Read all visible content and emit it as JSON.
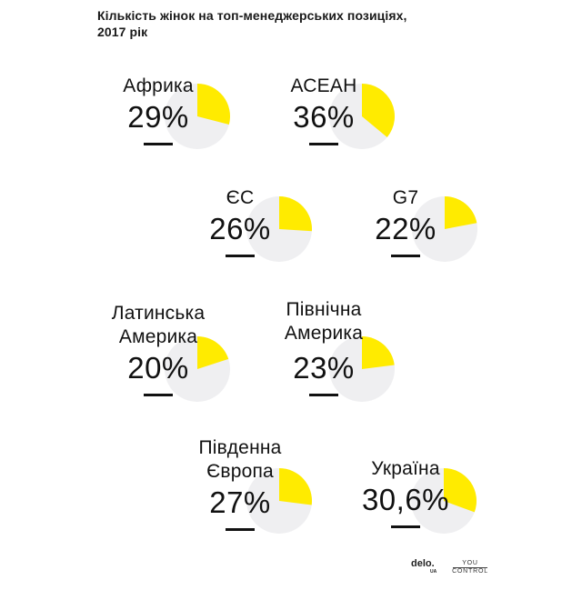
{
  "title": {
    "line1": "Кількість жінок на топ-менеджерських позиціях,",
    "line2": "2017 рік"
  },
  "colors": {
    "slice": "#FFEB00",
    "rest": "#EFEFF1",
    "text": "#111111"
  },
  "blocks": [
    {
      "label1": "Африка",
      "label2": "",
      "value": "29%"
    },
    {
      "label1": "АСЕАН",
      "label2": "",
      "value": "36%"
    },
    {
      "label1": "ЄС",
      "label2": "",
      "value": "26%"
    },
    {
      "label1": "G7",
      "label2": "",
      "value": "22%"
    },
    {
      "label1": "Латинська",
      "label2": "Америка",
      "value": "20%"
    },
    {
      "label1": "Північна",
      "label2": "Америка",
      "value": "23%"
    },
    {
      "label1": "Південна",
      "label2": "Європа",
      "value": "27%"
    },
    {
      "label1": "Україна",
      "label2": "",
      "value": "30,6%"
    }
  ],
  "logos": {
    "delo": "delo.",
    "delo_sub": "UA",
    "yc_top": "YOU",
    "yc_bottom": "CONTROL"
  },
  "chart_data": {
    "type": "pie",
    "title": "Кількість жінок на топ-менеджерських позиціях, 2017 рік",
    "categories": [
      "Африка",
      "АСЕАН",
      "ЄС",
      "G7",
      "Латинська Америка",
      "Північна Америка",
      "Південна Європа",
      "Україна"
    ],
    "values": [
      29,
      36,
      26,
      22,
      20,
      23,
      27,
      30.6
    ],
    "unit": "%",
    "layout": "small multiples: one pie per region showing share of women vs. remainder",
    "legend": "none"
  }
}
